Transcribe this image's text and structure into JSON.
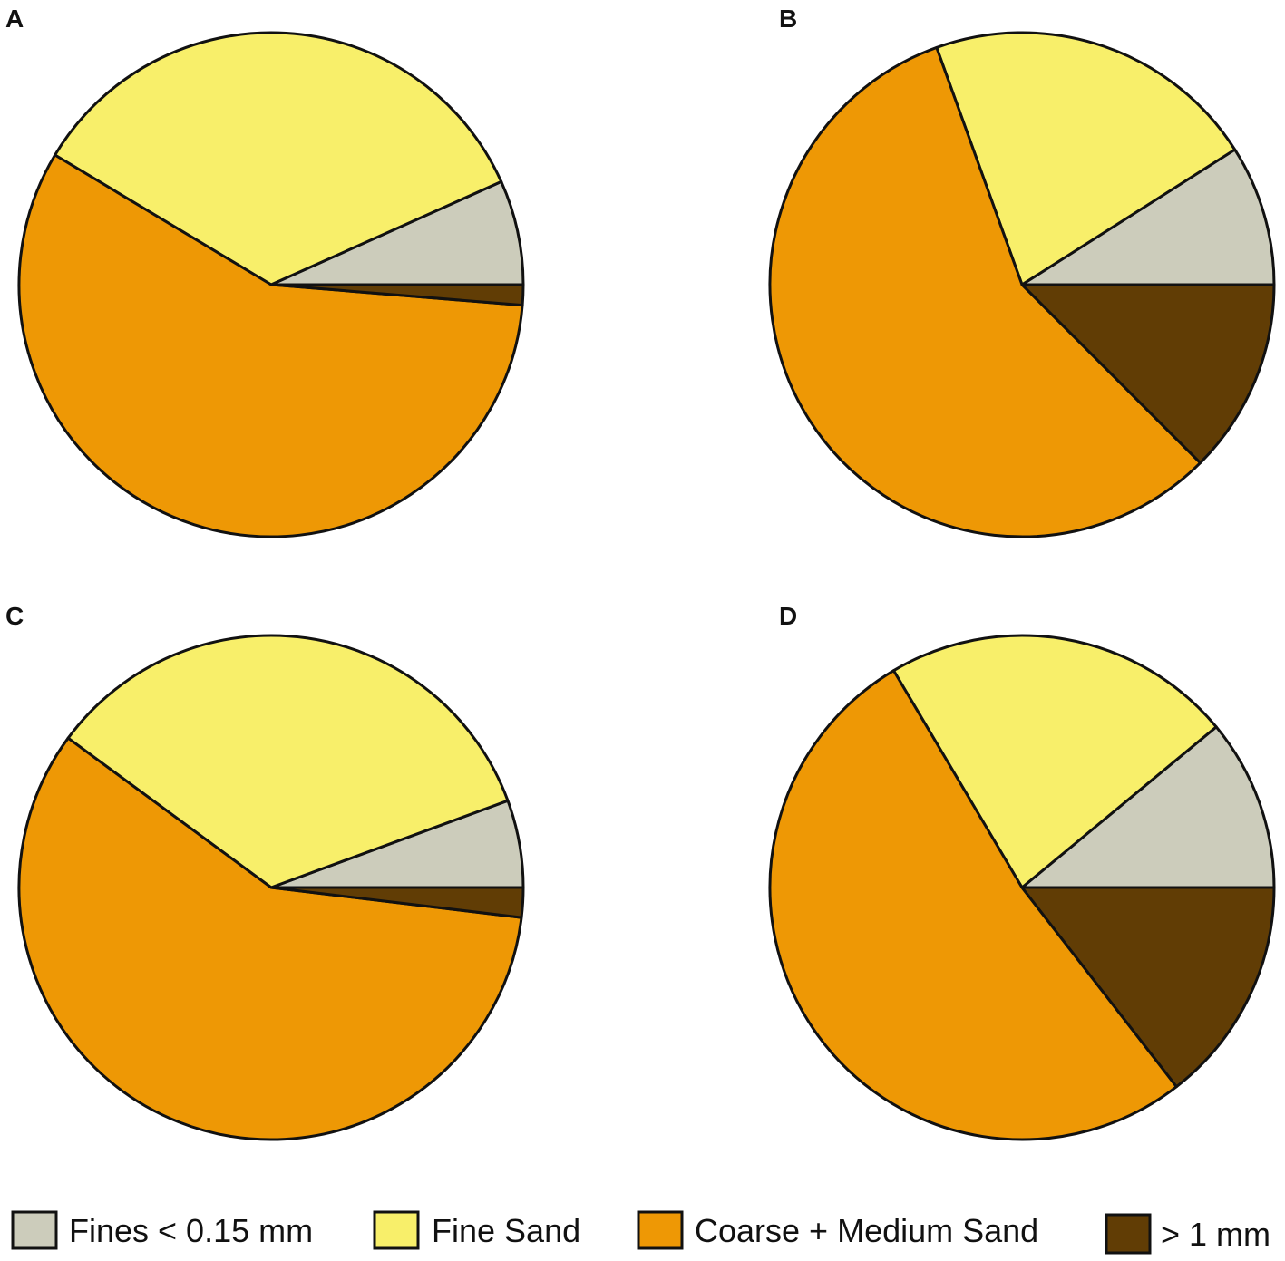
{
  "colors": {
    "fines": "#ccccbb",
    "fine_sand": "#f8ef6a",
    "coarse_medium_sand": "#ee9805",
    "gt_1mm": "#613d05",
    "outline": "#111111"
  },
  "legend": [
    {
      "key": "fines",
      "label": "Fines < 0.15 mm"
    },
    {
      "key": "fine_sand",
      "label": "Fine Sand"
    },
    {
      "key": "coarse_medium_sand",
      "label": "Coarse + Medium Sand"
    },
    {
      "key": "gt_1mm",
      "label": "> 1 mm"
    }
  ],
  "chart_data": [
    {
      "type": "pie",
      "panel": "A",
      "title": "",
      "categories": [
        "Fines < 0.15 mm",
        "Fine Sand",
        "Coarse + Medium Sand",
        "> 1 mm"
      ],
      "values": [
        6.7,
        34.7,
        57.3,
        1.3
      ],
      "start_angle_deg": 0,
      "direction": "counterclockwise"
    },
    {
      "type": "pie",
      "panel": "B",
      "title": "",
      "categories": [
        "Fines < 0.15 mm",
        "Fine Sand",
        "Coarse + Medium Sand",
        "> 1 mm"
      ],
      "values": [
        9.0,
        21.5,
        57.0,
        12.5
      ],
      "start_angle_deg": 0,
      "direction": "counterclockwise"
    },
    {
      "type": "pie",
      "panel": "C",
      "title": "",
      "categories": [
        "Fines < 0.15 mm",
        "Fine Sand",
        "Coarse + Medium Sand",
        "> 1 mm"
      ],
      "values": [
        5.6,
        34.3,
        58.2,
        1.9
      ],
      "start_angle_deg": 0,
      "direction": "counterclockwise"
    },
    {
      "type": "pie",
      "panel": "D",
      "title": "",
      "categories": [
        "Fines < 0.15 mm",
        "Fine Sand",
        "Coarse + Medium Sand",
        "> 1 mm"
      ],
      "values": [
        11.0,
        22.5,
        52.0,
        14.5
      ],
      "start_angle_deg": 0,
      "direction": "counterclockwise"
    }
  ]
}
